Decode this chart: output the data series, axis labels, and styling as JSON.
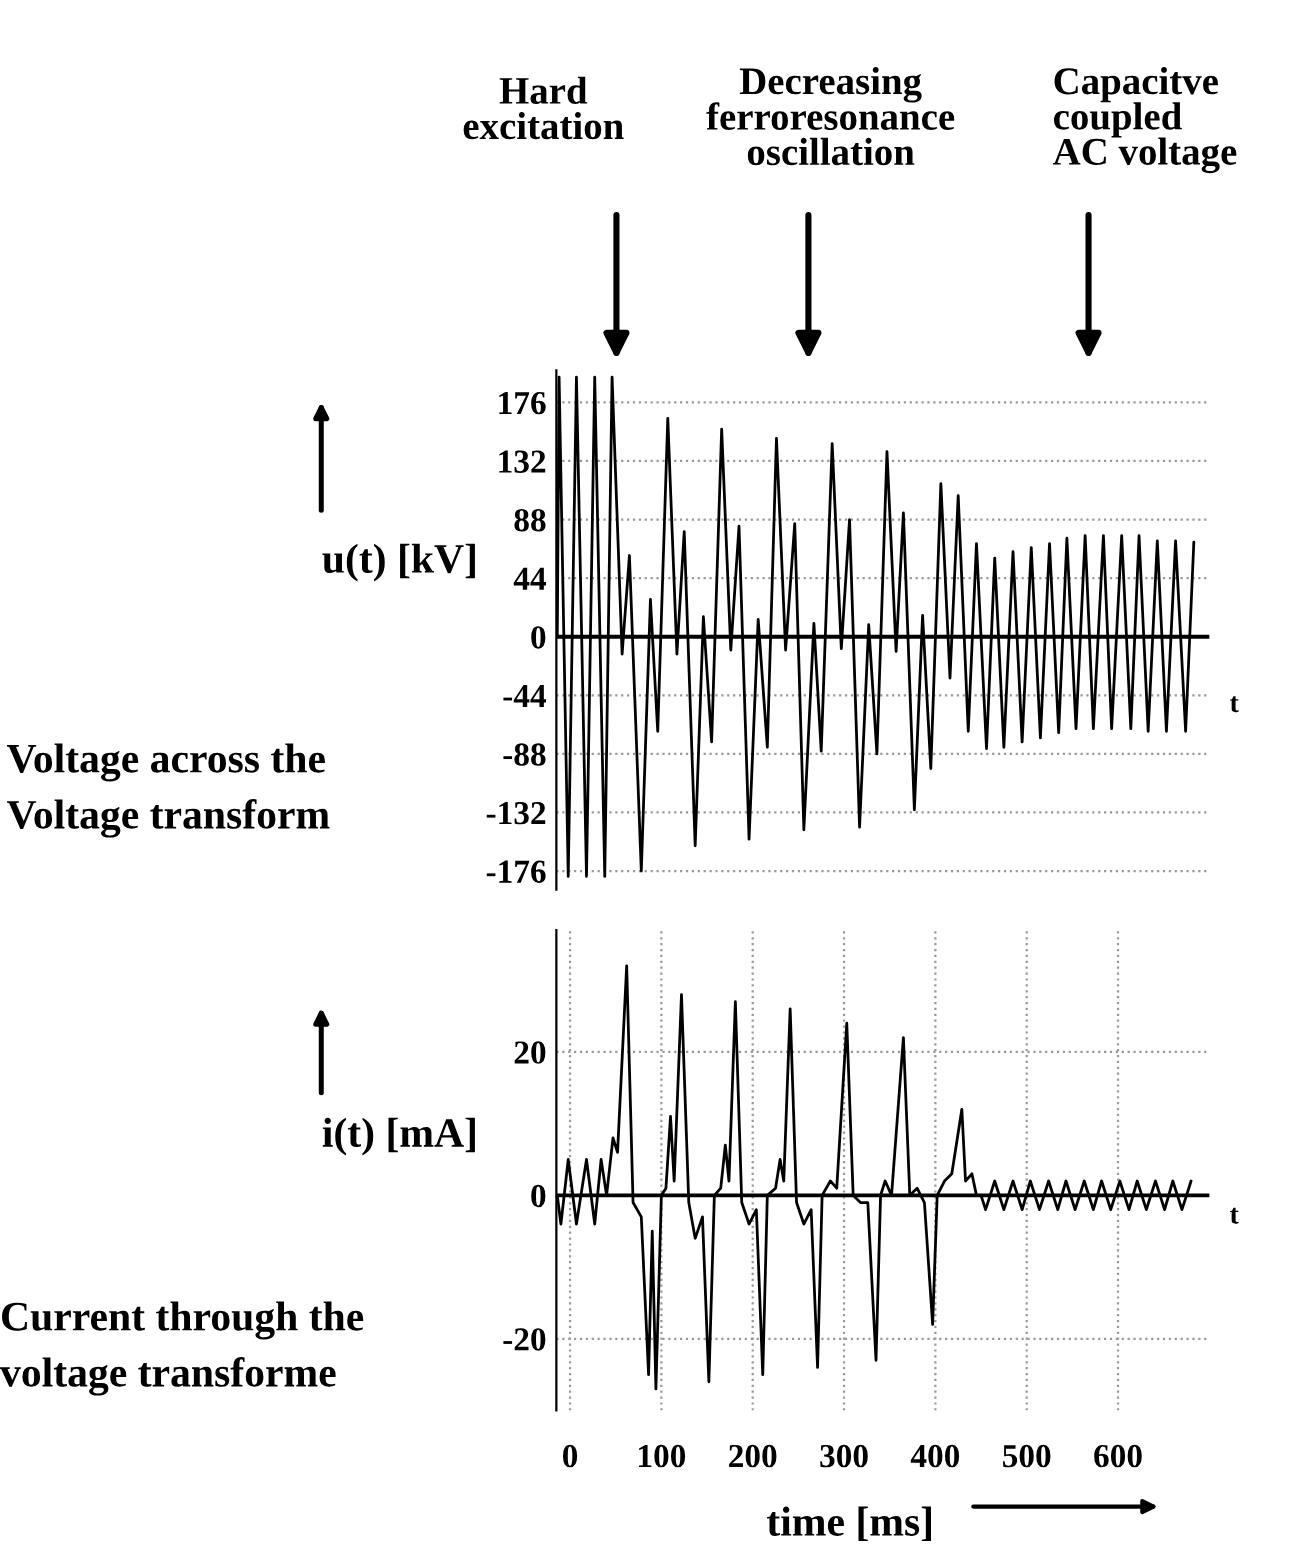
{
  "chart_data": [
    {
      "type": "line",
      "ylabel": "u(t) [kV]",
      "xlim": [
        -15,
        700
      ],
      "ylim": [
        -190,
        200
      ],
      "yticks": [
        176,
        132,
        88,
        44,
        0,
        -44,
        -88,
        -132,
        -176
      ],
      "tick_labels": "y",
      "grid": true,
      "line_style": "solid",
      "ref_lines": [
        {
          "axis": "y",
          "value": 0
        }
      ],
      "annotations": [
        "Hard\nexcitation",
        "Decreasing\nferroresonance\noscillation",
        "Capacitve\ncoupled\nAC voltage",
        "t",
        "Voltage across the\nVoltage transform"
      ],
      "series": [
        {
          "color": "#000000",
          "x": [
            -14,
            -12,
            -2,
            7,
            18,
            27,
            38,
            46,
            57,
            65,
            78,
            88,
            96,
            107,
            117,
            125,
            137,
            146,
            155,
            166,
            176,
            185,
            196,
            206,
            216,
            226,
            236,
            246,
            256,
            267,
            275,
            287,
            297,
            306,
            317,
            327,
            336,
            347,
            357,
            365,
            377,
            386,
            395,
            406,
            416,
            425,
            436,
            445,
            456,
            465,
            475,
            485,
            495,
            505,
            515,
            525,
            535,
            544,
            554,
            564,
            573,
            584,
            593,
            604,
            614,
            623,
            633,
            643,
            653,
            663,
            674,
            683
          ],
          "values": [
            0,
            195,
            -180,
            195,
            -180,
            195,
            -180,
            195,
            -13,
            61,
            -176,
            28,
            -71,
            164,
            -13,
            79,
            -157,
            15,
            -79,
            156,
            -10,
            83,
            -152,
            13,
            -83,
            149,
            -10,
            85,
            -145,
            10,
            -86,
            145,
            -9,
            88,
            -143,
            9,
            -88,
            139,
            -11,
            93,
            -130,
            16,
            -99,
            115,
            -31,
            106,
            -71,
            70,
            -84,
            59,
            -83,
            64,
            -79,
            67,
            -76,
            70,
            -72,
            74,
            -69,
            76,
            -69,
            76,
            -69,
            76,
            -69,
            76,
            -71,
            72,
            -71,
            72,
            -71,
            71
          ]
        }
      ]
    },
    {
      "type": "line",
      "ylabel": "i(t) [mA]",
      "xlabel": "time [ms]",
      "xlim": [
        -15,
        700
      ],
      "ylim": [
        -30,
        37
      ],
      "xticks": [
        0,
        100,
        200,
        300,
        400,
        500,
        600
      ],
      "yticks": [
        20,
        0,
        -20
      ],
      "grid": true,
      "line_style": "solid",
      "ref_lines": [
        {
          "axis": "y",
          "value": 0
        }
      ],
      "annotations": [
        "t",
        "Current through the\nvoltage transforme"
      ],
      "series": [
        {
          "color": "#000000",
          "x": [
            -14,
            -10,
            -2,
            7,
            18,
            27,
            34,
            40,
            47,
            52,
            62,
            69,
            78,
            86,
            90,
            94,
            100,
            105,
            110,
            114,
            122,
            130,
            137,
            145,
            152,
            158,
            165,
            170,
            174,
            181,
            188,
            196,
            204,
            211,
            216,
            225,
            230,
            234,
            241,
            248,
            256,
            264,
            271,
            276,
            285,
            292,
            303,
            310,
            318,
            326,
            335,
            340,
            345,
            352,
            365,
            372,
            380,
            388,
            397,
            402,
            410,
            418,
            429,
            433,
            440,
            445,
            450,
            455,
            465,
            475,
            485,
            495,
            504,
            514,
            524,
            534,
            543,
            553,
            563,
            573,
            582,
            592,
            602,
            612,
            621,
            631,
            641,
            651,
            660,
            670,
            680
          ],
          "values": [
            0,
            -4,
            5,
            -4,
            5,
            -4,
            5,
            0,
            8,
            6,
            32,
            -1,
            -3,
            -25,
            -5,
            -27,
            0,
            1,
            11,
            2,
            28,
            -1,
            -6,
            -3,
            -26,
            0,
            1,
            7,
            2,
            27,
            -1,
            -4,
            -2,
            -25,
            0,
            1,
            5,
            2,
            26,
            -1,
            -4,
            -2,
            -24,
            0,
            2,
            1,
            24,
            0,
            -1,
            -1,
            -23,
            0,
            2,
            0,
            22,
            0,
            1,
            -1,
            -18,
            0,
            2,
            3,
            12,
            2,
            3,
            0,
            0,
            -2,
            2,
            -2,
            2,
            -2,
            2,
            -2,
            2,
            -2,
            2,
            -2,
            2,
            -2,
            2,
            -2,
            2,
            -2,
            2,
            -2,
            2,
            -2,
            2,
            -2,
            2
          ]
        }
      ]
    }
  ]
}
